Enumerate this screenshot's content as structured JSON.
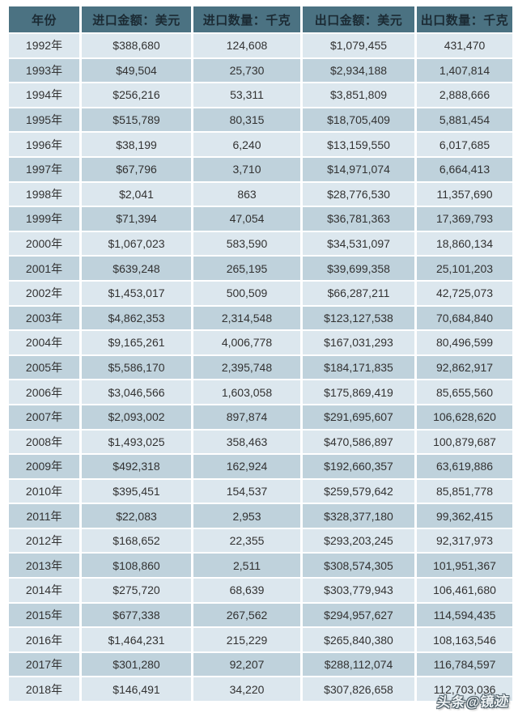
{
  "chart_data": {
    "type": "table",
    "columns": [
      "年份",
      "进口金额：美元",
      "进口数量：千克",
      "出口金额：美元",
      "出口数量：千克"
    ],
    "rows": [
      [
        "1992年",
        "$388,680",
        "124,608",
        "$1,079,455",
        "431,470"
      ],
      [
        "1993年",
        "$49,504",
        "25,730",
        "$2,934,188",
        "1,407,814"
      ],
      [
        "1994年",
        "$256,216",
        "53,311",
        "$3,851,809",
        "2,888,666"
      ],
      [
        "1995年",
        "$515,789",
        "80,315",
        "$18,705,409",
        "5,881,454"
      ],
      [
        "1996年",
        "$38,199",
        "6,240",
        "$13,159,550",
        "6,017,685"
      ],
      [
        "1997年",
        "$67,796",
        "3,710",
        "$14,971,074",
        "6,664,413"
      ],
      [
        "1998年",
        "$2,041",
        "863",
        "$28,776,530",
        "11,357,690"
      ],
      [
        "1999年",
        "$71,394",
        "47,054",
        "$36,781,363",
        "17,369,793"
      ],
      [
        "2000年",
        "$1,067,023",
        "583,590",
        "$34,531,097",
        "18,860,134"
      ],
      [
        "2001年",
        "$639,248",
        "265,195",
        "$39,699,358",
        "25,101,203"
      ],
      [
        "2002年",
        "$1,453,017",
        "500,509",
        "$66,287,211",
        "42,725,073"
      ],
      [
        "2003年",
        "$4,862,353",
        "2,314,548",
        "$123,127,538",
        "70,684,840"
      ],
      [
        "2004年",
        "$9,165,261",
        "4,006,778",
        "$167,031,293",
        "80,496,599"
      ],
      [
        "2005年",
        "$5,586,170",
        "2,395,748",
        "$184,171,835",
        "92,862,917"
      ],
      [
        "2006年",
        "$3,046,566",
        "1,603,058",
        "$175,869,419",
        "85,655,560"
      ],
      [
        "2007年",
        "$2,093,002",
        "897,874",
        "$291,695,607",
        "106,628,620"
      ],
      [
        "2008年",
        "$1,493,025",
        "358,463",
        "$470,586,897",
        "100,879,687"
      ],
      [
        "2009年",
        "$492,318",
        "162,924",
        "$192,660,357",
        "63,619,886"
      ],
      [
        "2010年",
        "$395,451",
        "154,537",
        "$259,579,642",
        "85,851,778"
      ],
      [
        "2011年",
        "$22,083",
        "2,953",
        "$328,377,180",
        "99,362,415"
      ],
      [
        "2012年",
        "$168,652",
        "22,355",
        "$293,203,245",
        "92,317,973"
      ],
      [
        "2013年",
        "$108,860",
        "2,511",
        "$308,574,305",
        "101,951,367"
      ],
      [
        "2014年",
        "$275,720",
        "68,639",
        "$303,779,943",
        "106,461,680"
      ],
      [
        "2015年",
        "$677,338",
        "267,562",
        "$294,957,627",
        "114,594,435"
      ],
      [
        "2016年",
        "$1,464,231",
        "215,229",
        "$265,840,380",
        "108,163,546"
      ],
      [
        "2017年",
        "$301,280",
        "92,207",
        "$288,112,074",
        "116,784,597"
      ],
      [
        "2018年",
        "$146,491",
        "34,220",
        "$307,826,658",
        "112,703,036"
      ]
    ],
    "title": "",
    "legend": "none",
    "grid": "cell-gaps-white"
  },
  "watermark": {
    "text": "头条@镜迹"
  },
  "colors": {
    "header_bg": "#4b7282",
    "header_text": "#1b2a33",
    "row_light": "#dce7ee",
    "row_dark": "#bfd2dc",
    "cell_text": "#323232",
    "page_bg": "#ffffff"
  }
}
